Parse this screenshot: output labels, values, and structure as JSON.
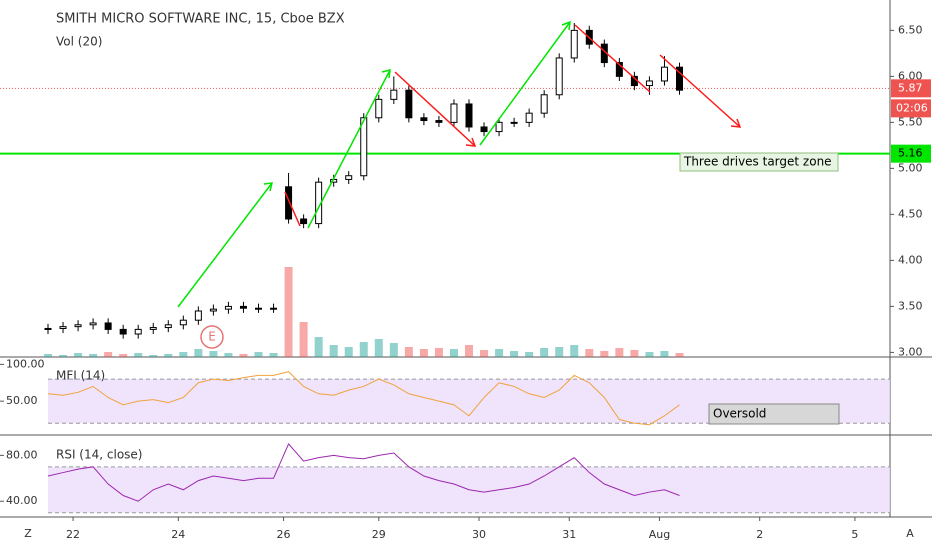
{
  "chart_data": {
    "type": "candlestick",
    "title": "SMITH MICRO SOFTWARE INC, 15, Cboe BZX",
    "x": [
      0,
      3,
      6,
      9,
      12,
      15,
      18,
      21,
      24,
      27,
      30,
      33,
      36,
      39,
      42,
      45,
      48,
      51,
      54,
      57,
      60,
      63,
      66,
      69,
      72,
      75,
      78,
      81,
      84,
      87,
      90,
      93,
      96,
      99,
      102,
      105,
      108,
      111,
      114,
      117,
      120,
      123,
      126
    ],
    "open": [
      3.25,
      3.26,
      3.28,
      3.3,
      3.32,
      3.25,
      3.2,
      3.25,
      3.27,
      3.3,
      3.35,
      3.45,
      3.47,
      3.5,
      3.48,
      3.48,
      4.8,
      4.45,
      4.4,
      4.85,
      4.88,
      4.92,
      5.55,
      5.75,
      5.85,
      5.55,
      5.52,
      5.5,
      5.7,
      5.45,
      5.4,
      5.5,
      5.5,
      5.6,
      5.8,
      6.2,
      6.5,
      6.35,
      6.15,
      6.0,
      5.9,
      5.95,
      6.1
    ],
    "high": [
      3.31,
      3.33,
      3.35,
      3.37,
      3.37,
      3.3,
      3.3,
      3.32,
      3.35,
      3.4,
      3.5,
      3.52,
      3.55,
      3.55,
      3.53,
      3.53,
      4.95,
      4.5,
      4.9,
      4.93,
      4.97,
      5.6,
      5.8,
      6.0,
      5.9,
      5.6,
      5.57,
      5.75,
      5.75,
      5.5,
      5.55,
      5.55,
      5.65,
      5.85,
      6.25,
      6.58,
      6.55,
      6.4,
      6.2,
      6.05,
      6.0,
      6.22,
      6.15
    ],
    "low": [
      3.2,
      3.21,
      3.23,
      3.25,
      3.2,
      3.15,
      3.15,
      3.2,
      3.22,
      3.25,
      3.3,
      3.4,
      3.42,
      3.43,
      3.43,
      3.43,
      4.4,
      4.35,
      4.35,
      4.8,
      4.83,
      4.87,
      5.5,
      5.7,
      5.5,
      5.47,
      5.45,
      5.45,
      5.4,
      5.35,
      5.35,
      5.45,
      5.45,
      5.55,
      5.75,
      6.15,
      6.3,
      6.1,
      5.95,
      5.85,
      5.8,
      5.9,
      5.8
    ],
    "close": [
      3.26,
      3.28,
      3.3,
      3.32,
      3.25,
      3.2,
      3.25,
      3.27,
      3.3,
      3.35,
      3.45,
      3.47,
      3.5,
      3.48,
      3.48,
      3.48,
      4.45,
      4.4,
      4.85,
      4.88,
      4.92,
      5.55,
      5.75,
      5.85,
      5.55,
      5.52,
      5.5,
      5.7,
      5.45,
      5.4,
      5.5,
      5.5,
      5.6,
      5.8,
      6.2,
      6.5,
      6.35,
      6.15,
      6.0,
      5.9,
      5.95,
      6.1,
      5.85
    ],
    "xlim": [
      0,
      168
    ],
    "xticks": [
      {
        "value": 5,
        "label": "22"
      },
      {
        "value": 26,
        "label": "24"
      },
      {
        "value": 47,
        "label": "26"
      },
      {
        "value": 66,
        "label": "29"
      },
      {
        "value": 86,
        "label": "30"
      },
      {
        "value": 104,
        "label": "31"
      },
      {
        "value": 122,
        "label": "Aug"
      },
      {
        "value": 142,
        "label": "2"
      },
      {
        "value": 161,
        "label": "5"
      }
    ],
    "ylim": [
      2.95,
      6.83
    ],
    "yticks": [
      {
        "value": 3,
        "label": "3.00"
      },
      {
        "value": 3.5,
        "label": "3.50"
      },
      {
        "value": 4,
        "label": "4.00"
      },
      {
        "value": 4.5,
        "label": "4.50"
      },
      {
        "value": 5,
        "label": "5.00"
      },
      {
        "value": 5.5,
        "label": "5.50"
      },
      {
        "value": 6,
        "label": "6.00"
      },
      {
        "value": 6.5,
        "label": "6.50"
      }
    ],
    "up_color": "#ffffff",
    "down_color": "#000000",
    "levels": [
      {
        "value": 5.16,
        "color": "#00e600"
      },
      {
        "value": 5.87,
        "color": "#ef5350"
      }
    ],
    "countdown": "02:06",
    "annotations": [
      "Three drives target zone",
      "Oversold"
    ],
    "earnings": "E",
    "volume": {
      "name": "Vol (20)",
      "ylim": [
        0,
        100
      ],
      "up_color": "#26a69a",
      "down_color": "#ef5350",
      "values": [
        3,
        2,
        4,
        3,
        5,
        3,
        4,
        2,
        3,
        5,
        8,
        6,
        4,
        3,
        5,
        4,
        90,
        35,
        20,
        12,
        10,
        15,
        18,
        14,
        10,
        8,
        9,
        8,
        12,
        7,
        8,
        6,
        5,
        9,
        10,
        12,
        8,
        6,
        9,
        7,
        5,
        6,
        4
      ]
    },
    "indicators": [
      {
        "name": "MFI (14)",
        "color": "#f0a33c",
        "ylim": [
          4,
          110
        ],
        "bands": [
          20,
          80
        ],
        "yticks": [
          {
            "value": 50,
            "label": "50.00"
          },
          {
            "value": 100,
            "label": "100.00"
          }
        ],
        "values": [
          60,
          58,
          62,
          70,
          55,
          45,
          50,
          52,
          48,
          55,
          75,
          80,
          78,
          82,
          85,
          85,
          90,
          70,
          60,
          58,
          65,
          70,
          80,
          72,
          60,
          55,
          50,
          45,
          30,
          55,
          75,
          70,
          60,
          55,
          65,
          85,
          75,
          55,
          25,
          20,
          18,
          30,
          45
        ]
      },
      {
        "name": "RSI (14, close)",
        "color": "#9c27b0",
        "ylim": [
          28,
          96
        ],
        "bands": [
          30,
          70
        ],
        "yticks": [
          {
            "value": 40,
            "label": "40.00"
          },
          {
            "value": 80,
            "label": "80.00"
          }
        ],
        "values": [
          62,
          65,
          68,
          70,
          55,
          45,
          40,
          50,
          55,
          50,
          58,
          62,
          60,
          58,
          60,
          60,
          90,
          75,
          78,
          80,
          78,
          77,
          80,
          82,
          70,
          62,
          58,
          55,
          50,
          48,
          50,
          52,
          55,
          62,
          70,
          78,
          65,
          55,
          50,
          45,
          48,
          50,
          45
        ]
      }
    ],
    "toolbar": {
      "left": "Z",
      "right": "A"
    }
  }
}
